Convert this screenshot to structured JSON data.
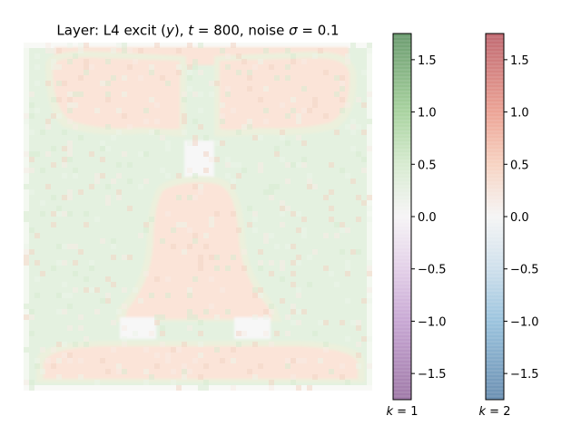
{
  "chart_data": {
    "type": "heatmap",
    "title": "Layer: L4 excit (y), t = 800, noise σ = 0.1",
    "title_parts": {
      "prefix": "Layer: L4 excit (",
      "var": "y",
      "mid1": "), ",
      "tvar": "t",
      "mid2": " = 800, noise ",
      "sigma": "σ",
      "mid3": " = 0.1"
    },
    "grid": false,
    "colors": {
      "green_region": "#e4f1e0",
      "salmon_region": "#fbe4d8",
      "edge_tint": "#ecf0dc",
      "neutral": "#f7f7f7",
      "background": "#ffffff"
    },
    "regions": [
      {
        "name": "background-green",
        "value": 0.12
      },
      {
        "name": "top-lobes",
        "value": 0.25
      },
      {
        "name": "center-bell",
        "value": 0.25
      },
      {
        "name": "bottom-bar",
        "value": 0.25
      },
      {
        "name": "neck-gaps",
        "value": 0.0
      }
    ],
    "colorbars": [
      {
        "label_prefix": "k",
        "label_value": " = 1",
        "colormap": "PRGn",
        "range": [
          -1.75,
          1.75
        ],
        "ticks": [
          {
            "value": 1.5,
            "label": "1.5"
          },
          {
            "value": 1.0,
            "label": "1.0"
          },
          {
            "value": 0.5,
            "label": "0.5"
          },
          {
            "value": 0.0,
            "label": "0.0"
          },
          {
            "value": -0.5,
            "label": "−0.5"
          },
          {
            "value": -1.0,
            "label": "−1.0"
          },
          {
            "value": -1.5,
            "label": "−1.5"
          }
        ],
        "stops": [
          {
            "v": 1.75,
            "c": "#6c9c70"
          },
          {
            "v": 1.0,
            "c": "#a9d3a0"
          },
          {
            "v": 0.5,
            "c": "#d7ebd0"
          },
          {
            "v": 0.0,
            "c": "#f6f4f6"
          },
          {
            "v": -0.5,
            "c": "#e3d0e8"
          },
          {
            "v": -1.0,
            "c": "#c8a8d4"
          },
          {
            "v": -1.75,
            "c": "#a07aa8"
          }
        ]
      },
      {
        "label_prefix": "k",
        "label_value": " = 2",
        "colormap": "RdBu",
        "range": [
          -1.75,
          1.75
        ],
        "ticks": [
          {
            "value": 1.5,
            "label": "1.5"
          },
          {
            "value": 1.0,
            "label": "1.0"
          },
          {
            "value": 0.5,
            "label": "0.5"
          },
          {
            "value": 0.0,
            "label": "0.0"
          },
          {
            "value": -0.5,
            "label": "−0.5"
          },
          {
            "value": -1.0,
            "label": "−1.0"
          },
          {
            "value": -1.5,
            "label": "−1.5"
          }
        ],
        "stops": [
          {
            "v": 1.75,
            "c": "#c06a72"
          },
          {
            "v": 1.0,
            "c": "#eca496"
          },
          {
            "v": 0.5,
            "c": "#f7d3c2"
          },
          {
            "v": 0.0,
            "c": "#f5f5f5"
          },
          {
            "v": -0.5,
            "c": "#cfe0ec"
          },
          {
            "v": -1.0,
            "c": "#9cc4de"
          },
          {
            "v": -1.75,
            "c": "#6c90b2"
          }
        ]
      }
    ]
  }
}
